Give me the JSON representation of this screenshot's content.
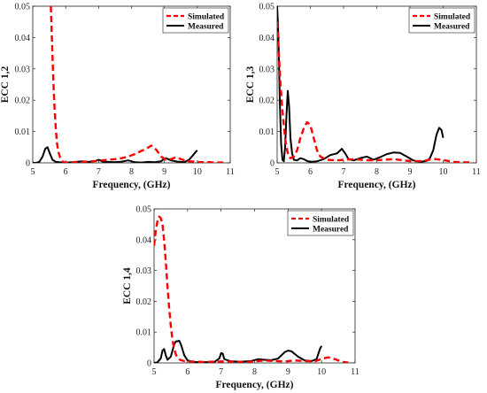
{
  "chart_data": [
    {
      "type": "line",
      "xlabel": "Frequency, (GHz)",
      "ylabel": "ECC 1,2",
      "xlim": [
        5,
        11
      ],
      "ylim": [
        0,
        0.05
      ],
      "xticks": [
        "5",
        "6",
        "7",
        "8",
        "9",
        "10",
        "11"
      ],
      "yticks": [
        "0",
        "0.01",
        "0.02",
        "0.03",
        "0.04",
        "0.05"
      ],
      "legend_position": "top-right",
      "series": [
        {
          "name": "Simulated",
          "color": "#ff0000",
          "style": "dashed",
          "x": [
            5.55,
            5.58,
            5.62,
            5.66,
            5.7,
            5.74,
            5.78,
            5.82,
            5.86,
            5.9,
            5.95,
            6.0,
            6.1,
            6.3,
            6.5,
            6.7,
            6.9,
            7.1,
            7.3,
            7.5,
            7.7,
            7.9,
            8.1,
            8.3,
            8.45,
            8.6,
            8.75,
            8.9,
            9.05,
            9.2,
            9.35,
            9.5,
            9.7,
            9.9,
            10.1,
            10.3,
            10.5,
            10.7,
            10.9
          ],
          "y": [
            0.05,
            0.04,
            0.028,
            0.018,
            0.011,
            0.006,
            0.0035,
            0.002,
            0.001,
            0.0005,
            0.0002,
            0.0001,
            0.0001,
            0.0002,
            0.0003,
            0.0004,
            0.0006,
            0.0008,
            0.001,
            0.0012,
            0.0015,
            0.002,
            0.0028,
            0.0038,
            0.0045,
            0.0055,
            0.0042,
            0.002,
            0.001,
            0.0012,
            0.0018,
            0.0012,
            0.0005,
            0.0004,
            0.0002,
            0.0003,
            0.0001,
            0.0001,
            0.0001
          ]
        },
        {
          "name": "Measured",
          "color": "#000000",
          "style": "solid",
          "x": [
            5.0,
            5.1,
            5.2,
            5.3,
            5.38,
            5.45,
            5.52,
            5.6,
            5.7,
            5.8,
            6.0,
            6.2,
            6.5,
            6.7,
            6.9,
            7.0,
            7.05,
            7.12,
            7.3,
            7.5,
            7.7,
            7.9,
            8.1,
            8.3,
            8.5,
            8.7,
            8.9,
            8.98,
            9.05,
            9.2,
            9.4,
            9.6,
            9.75,
            9.85,
            9.95,
            10.0
          ],
          "y": [
            0.0,
            0.0,
            0.0003,
            0.002,
            0.0045,
            0.005,
            0.003,
            0.001,
            0.0003,
            0.0002,
            0.0001,
            0.0002,
            0.0005,
            0.0003,
            0.0006,
            0.001,
            0.0008,
            0.0004,
            0.0003,
            0.0002,
            0.0004,
            0.0008,
            0.0002,
            0.0001,
            0.0003,
            0.0002,
            0.0005,
            0.0012,
            0.0015,
            0.0008,
            0.0004,
            0.0002,
            0.001,
            0.0022,
            0.0035,
            0.004
          ]
        }
      ]
    },
    {
      "type": "line",
      "xlabel": "Frequency, (GHz)",
      "ylabel": "ECC 1,3",
      "xlim": [
        5,
        11
      ],
      "ylim": [
        0,
        0.05
      ],
      "xticks": [
        "5",
        "6",
        "7",
        "8",
        "9",
        "10",
        "11"
      ],
      "yticks": [
        "0",
        "0.01",
        "0.02",
        "0.03",
        "0.04",
        "0.05"
      ],
      "legend_position": "top-right",
      "series": [
        {
          "name": "Simulated",
          "color": "#ff0000",
          "style": "dashed",
          "x": [
            5.0,
            5.03,
            5.06,
            5.1,
            5.15,
            5.2,
            5.25,
            5.3,
            5.35,
            5.4,
            5.5,
            5.6,
            5.7,
            5.8,
            5.9,
            6.0,
            6.1,
            6.2,
            6.3,
            6.5,
            6.8,
            7.0,
            7.3,
            7.6,
            7.9,
            8.2,
            8.5,
            8.8,
            9.1,
            9.4,
            9.7,
            10.0,
            10.3,
            10.6,
            10.9
          ],
          "y": [
            0.045,
            0.04,
            0.033,
            0.025,
            0.018,
            0.012,
            0.007,
            0.004,
            0.002,
            0.0015,
            0.002,
            0.004,
            0.008,
            0.011,
            0.013,
            0.012,
            0.008,
            0.004,
            0.002,
            0.001,
            0.0008,
            0.001,
            0.0012,
            0.0009,
            0.0008,
            0.001,
            0.0012,
            0.0008,
            0.0005,
            0.0006,
            0.0013,
            0.0009,
            0.0003,
            0.0002,
            0.0001
          ]
        },
        {
          "name": "Measured",
          "color": "#000000",
          "style": "solid",
          "x": [
            5.0,
            5.02,
            5.05,
            5.08,
            5.12,
            5.16,
            5.2,
            5.24,
            5.28,
            5.32,
            5.36,
            5.4,
            5.45,
            5.5,
            5.6,
            5.7,
            5.8,
            5.9,
            6.0,
            6.2,
            6.4,
            6.6,
            6.8,
            6.95,
            7.05,
            7.15,
            7.3,
            7.5,
            7.7,
            7.9,
            8.1,
            8.3,
            8.5,
            8.7,
            8.9,
            9.1,
            9.3,
            9.5,
            9.6,
            9.7,
            9.8,
            9.88,
            9.95,
            10.0
          ],
          "y": [
            0.05,
            0.045,
            0.035,
            0.02,
            0.006,
            0.001,
            0.0005,
            0.005,
            0.015,
            0.023,
            0.018,
            0.008,
            0.003,
            0.001,
            0.0008,
            0.0015,
            0.0012,
            0.0006,
            0.0003,
            0.0005,
            0.0012,
            0.0025,
            0.003,
            0.0045,
            0.003,
            0.0012,
            0.0008,
            0.0015,
            0.002,
            0.001,
            0.0018,
            0.0028,
            0.0033,
            0.0032,
            0.002,
            0.0008,
            0.0003,
            0.0006,
            0.0015,
            0.004,
            0.009,
            0.0112,
            0.0105,
            0.008
          ]
        }
      ]
    },
    {
      "type": "line",
      "xlabel": "Frequency, (GHz)",
      "ylabel": "ECC 1,4",
      "xlim": [
        5,
        11
      ],
      "ylim": [
        0,
        0.05
      ],
      "xticks": [
        "5",
        "6",
        "7",
        "8",
        "9",
        "10",
        "11"
      ],
      "yticks": [
        "0",
        "0.01",
        "0.02",
        "0.03",
        "0.04",
        "0.05"
      ],
      "legend_position": "top-right",
      "series": [
        {
          "name": "Simulated",
          "color": "#ff0000",
          "style": "dashed",
          "x": [
            5.0,
            5.05,
            5.1,
            5.15,
            5.2,
            5.25,
            5.3,
            5.35,
            5.4,
            5.45,
            5.5,
            5.55,
            5.6,
            5.65,
            5.7,
            5.75,
            5.8,
            5.9,
            6.0,
            6.2,
            6.5,
            6.8,
            7.1,
            7.4,
            7.7,
            8.0,
            8.3,
            8.6,
            8.9,
            9.2,
            9.5,
            9.8,
            10.0,
            10.2,
            10.4,
            10.6,
            10.8
          ],
          "y": [
            0.038,
            0.043,
            0.046,
            0.0475,
            0.047,
            0.045,
            0.04,
            0.033,
            0.025,
            0.018,
            0.012,
            0.0075,
            0.0045,
            0.0028,
            0.0017,
            0.0012,
            0.0009,
            0.0006,
            0.0005,
            0.0004,
            0.0003,
            0.0004,
            0.0005,
            0.0004,
            0.0003,
            0.0005,
            0.0008,
            0.0006,
            0.0005,
            0.0008,
            0.0006,
            0.0005,
            0.0013,
            0.0018,
            0.0012,
            0.0004,
            0.0001
          ]
        },
        {
          "name": "Measured",
          "color": "#000000",
          "style": "solid",
          "x": [
            5.0,
            5.1,
            5.2,
            5.25,
            5.3,
            5.35,
            5.4,
            5.5,
            5.6,
            5.65,
            5.7,
            5.75,
            5.8,
            5.9,
            6.0,
            6.2,
            6.5,
            6.8,
            6.95,
            7.0,
            7.05,
            7.1,
            7.3,
            7.6,
            7.9,
            8.1,
            8.3,
            8.5,
            8.7,
            8.9,
            9.0,
            9.1,
            9.3,
            9.5,
            9.7,
            9.85,
            9.95,
            10.0
          ],
          "y": [
            0.0,
            0.0002,
            0.0015,
            0.004,
            0.0045,
            0.0025,
            0.001,
            0.002,
            0.006,
            0.007,
            0.007,
            0.0072,
            0.006,
            0.0025,
            0.0008,
            0.0003,
            0.0002,
            0.0003,
            0.0015,
            0.0032,
            0.003,
            0.0012,
            0.0005,
            0.0004,
            0.0006,
            0.0012,
            0.001,
            0.0009,
            0.0014,
            0.0035,
            0.004,
            0.0038,
            0.002,
            0.0008,
            0.0006,
            0.0012,
            0.0045,
            0.0055
          ]
        }
      ]
    }
  ]
}
